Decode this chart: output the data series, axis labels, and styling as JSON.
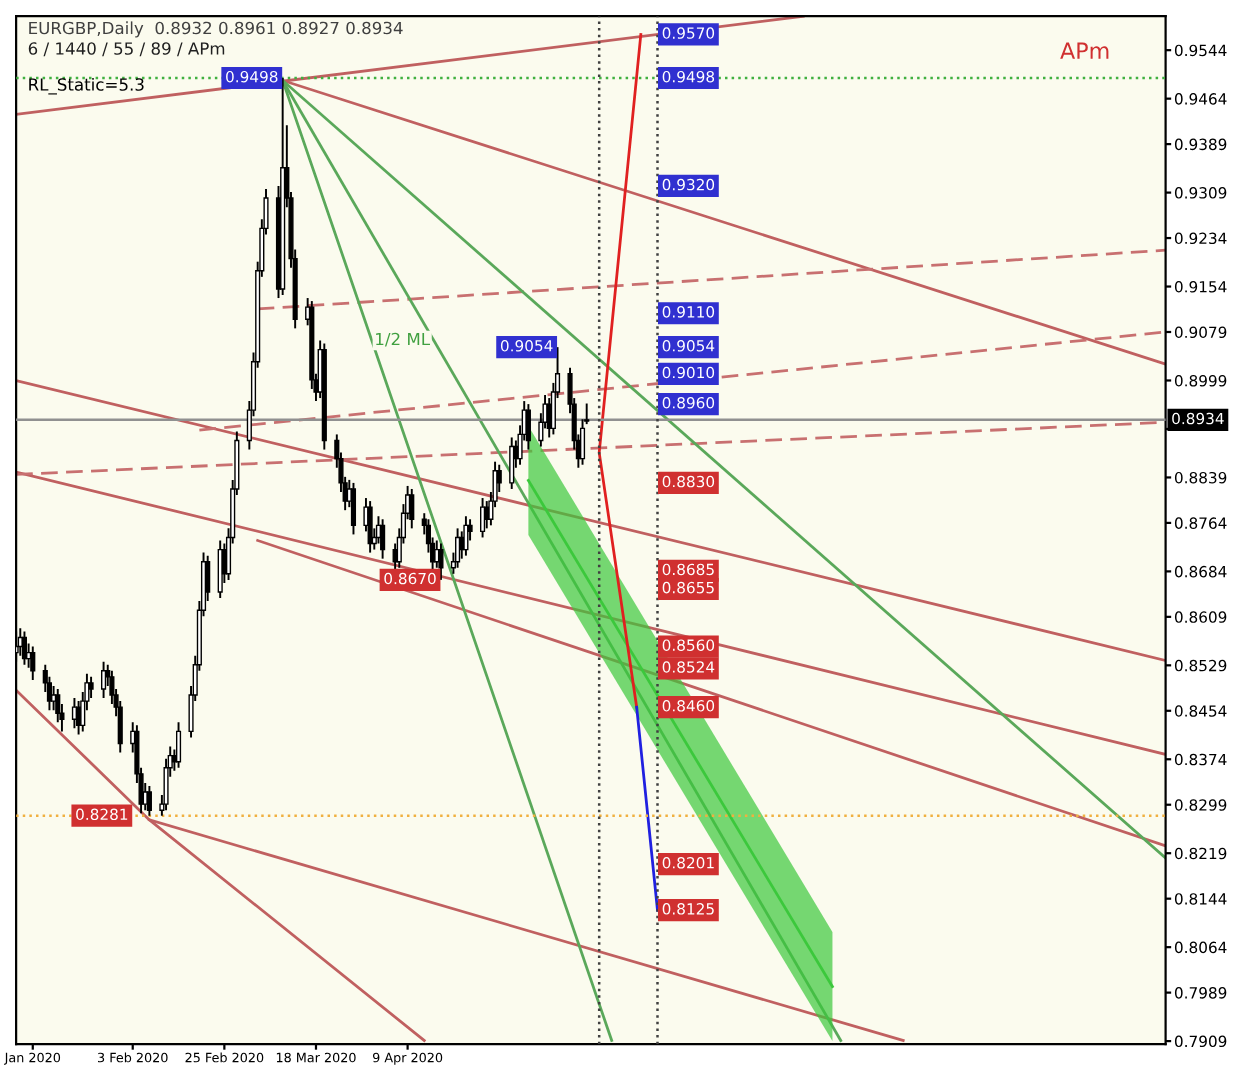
{
  "chart_data": {
    "type": "candlestick",
    "title": "EURGBP,Daily  0.8932 0.8961 0.8927 0.8934",
    "subtitle": "6 / 1440 / 55 / 89 / APm",
    "xlim": [
      "2020-01-06",
      "2020-10-08"
    ],
    "ylim": [
      0.7904,
      0.96
    ],
    "xticks": [
      {
        "value": "2020-01-10",
        "label": "Jan 2020"
      },
      {
        "value": "2020-02-03",
        "label": "3 Feb 2020"
      },
      {
        "value": "2020-02-25",
        "label": "25 Feb 2020"
      },
      {
        "value": "2020-03-18",
        "label": "18 Mar 2020"
      },
      {
        "value": "2020-04-09",
        "label": "9 Apr 2020"
      }
    ],
    "yticks": [
      0.9544,
      0.9464,
      0.9389,
      0.9309,
      0.9234,
      0.9154,
      0.9079,
      0.8999,
      {
        "value": 0.8919,
        "label": null
      },
      0.8839,
      0.8764,
      0.8684,
      0.8609,
      0.8529,
      0.8454,
      0.8374,
      0.8299,
      0.8219,
      0.8144,
      0.8064,
      0.7989,
      0.7909
    ],
    "grid": false,
    "legend": false,
    "x": [
      "2020-01-06",
      "2020-01-07",
      "2020-01-08",
      "2020-01-09",
      "2020-01-10",
      "2020-01-13",
      "2020-01-14",
      "2020-01-15",
      "2020-01-16",
      "2020-01-17",
      "2020-01-20",
      "2020-01-21",
      "2020-01-22",
      "2020-01-23",
      "2020-01-24",
      "2020-01-27",
      "2020-01-28",
      "2020-01-29",
      "2020-01-30",
      "2020-01-31",
      "2020-02-03",
      "2020-02-04",
      "2020-02-05",
      "2020-02-06",
      "2020-02-07",
      "2020-02-10",
      "2020-02-11",
      "2020-02-12",
      "2020-02-13",
      "2020-02-14",
      "2020-02-17",
      "2020-02-18",
      "2020-02-19",
      "2020-02-20",
      "2020-02-21",
      "2020-02-24",
      "2020-02-25",
      "2020-02-26",
      "2020-02-27",
      "2020-02-28",
      "2020-03-02",
      "2020-03-03",
      "2020-03-04",
      "2020-03-05",
      "2020-03-06",
      "2020-03-09",
      "2020-03-10",
      "2020-03-11",
      "2020-03-12",
      "2020-03-13",
      "2020-03-16",
      "2020-03-17",
      "2020-03-18",
      "2020-03-19",
      "2020-03-20",
      "2020-03-23",
      "2020-03-24",
      "2020-03-25",
      "2020-03-26",
      "2020-03-27",
      "2020-03-30",
      "2020-03-31",
      "2020-04-01",
      "2020-04-02",
      "2020-04-03",
      "2020-04-06",
      "2020-04-07",
      "2020-04-08",
      "2020-04-09",
      "2020-04-10",
      "2020-04-13",
      "2020-04-14",
      "2020-04-15",
      "2020-04-16",
      "2020-04-17",
      "2020-04-20",
      "2020-04-21",
      "2020-04-22",
      "2020-04-23",
      "2020-04-24",
      "2020-04-27",
      "2020-04-28",
      "2020-04-29",
      "2020-04-30",
      "2020-05-01",
      "2020-05-04",
      "2020-05-05",
      "2020-05-06",
      "2020-05-07",
      "2020-05-08",
      "2020-05-11",
      "2020-05-12",
      "2020-05-13",
      "2020-05-14",
      "2020-05-15",
      "2020-05-18",
      "2020-05-19",
      "2020-05-20",
      "2020-05-21",
      "2020-05-22"
    ],
    "ohlc": [
      [
        0.855,
        0.8585,
        0.8535,
        0.856
      ],
      [
        0.856,
        0.859,
        0.8545,
        0.8575
      ],
      [
        0.8575,
        0.8585,
        0.853,
        0.854
      ],
      [
        0.854,
        0.8565,
        0.8525,
        0.855
      ],
      [
        0.855,
        0.856,
        0.8505,
        0.852
      ],
      [
        0.852,
        0.853,
        0.8485,
        0.85
      ],
      [
        0.85,
        0.851,
        0.8455,
        0.847
      ],
      [
        0.847,
        0.8495,
        0.8455,
        0.848
      ],
      [
        0.848,
        0.849,
        0.8435,
        0.845
      ],
      [
        0.845,
        0.8465,
        0.842,
        0.844
      ],
      [
        0.844,
        0.8475,
        0.8425,
        0.846
      ],
      [
        0.846,
        0.847,
        0.8415,
        0.843
      ],
      [
        0.843,
        0.8485,
        0.842,
        0.847
      ],
      [
        0.847,
        0.8515,
        0.8455,
        0.85
      ],
      [
        0.85,
        0.851,
        0.8475,
        0.849
      ],
      [
        0.849,
        0.8535,
        0.8475,
        0.852
      ],
      [
        0.852,
        0.853,
        0.8495,
        0.851
      ],
      [
        0.851,
        0.852,
        0.8465,
        0.848
      ],
      [
        0.848,
        0.849,
        0.8445,
        0.846
      ],
      [
        0.846,
        0.847,
        0.8385,
        0.84
      ],
      [
        0.84,
        0.8435,
        0.8385,
        0.842
      ],
      [
        0.842,
        0.843,
        0.8335,
        0.835
      ],
      [
        0.835,
        0.836,
        0.8285,
        0.83
      ],
      [
        0.83,
        0.8335,
        0.829,
        0.832
      ],
      [
        0.832,
        0.833,
        0.8281,
        0.829
      ],
      [
        0.829,
        0.8315,
        0.8281,
        0.83
      ],
      [
        0.83,
        0.8375,
        0.829,
        0.836
      ],
      [
        0.836,
        0.8395,
        0.8345,
        0.838
      ],
      [
        0.838,
        0.839,
        0.8355,
        0.837
      ],
      [
        0.837,
        0.8435,
        0.836,
        0.842
      ],
      [
        0.842,
        0.8495,
        0.841,
        0.848
      ],
      [
        0.848,
        0.8545,
        0.847,
        0.853
      ],
      [
        0.853,
        0.8635,
        0.852,
        0.862
      ],
      [
        0.862,
        0.8715,
        0.861,
        0.87
      ],
      [
        0.87,
        0.871,
        0.8635,
        0.865
      ],
      [
        0.865,
        0.8735,
        0.864,
        0.872
      ],
      [
        0.872,
        0.873,
        0.8665,
        0.868
      ],
      [
        0.868,
        0.8755,
        0.867,
        0.874
      ],
      [
        0.874,
        0.8835,
        0.873,
        0.882
      ],
      [
        0.882,
        0.8915,
        0.881,
        0.89
      ],
      [
        0.89,
        0.8965,
        0.8885,
        0.895
      ],
      [
        0.895,
        0.9045,
        0.894,
        0.903
      ],
      [
        0.903,
        0.9195,
        0.902,
        0.918
      ],
      [
        0.918,
        0.9265,
        0.917,
        0.925
      ],
      [
        0.925,
        0.9315,
        0.924,
        0.93
      ],
      [
        0.93,
        0.932,
        0.9135,
        0.915
      ],
      [
        0.915,
        0.9498,
        0.914,
        0.935
      ],
      [
        0.935,
        0.942,
        0.9285,
        0.93
      ],
      [
        0.93,
        0.931,
        0.9185,
        0.92
      ],
      [
        0.92,
        0.9215,
        0.9085,
        0.91
      ],
      [
        0.91,
        0.9135,
        0.909,
        0.912
      ],
      [
        0.912,
        0.913,
        0.8985,
        0.9
      ],
      [
        0.9,
        0.901,
        0.8965,
        0.898
      ],
      [
        0.898,
        0.9065,
        0.897,
        0.905
      ],
      [
        0.905,
        0.906,
        0.8885,
        0.89
      ],
      [
        0.89,
        0.891,
        0.8855,
        0.887
      ],
      [
        0.887,
        0.888,
        0.8815,
        0.883
      ],
      [
        0.883,
        0.884,
        0.8785,
        0.88
      ],
      [
        0.88,
        0.8835,
        0.879,
        0.882
      ],
      [
        0.882,
        0.883,
        0.8745,
        0.876
      ],
      [
        0.876,
        0.8805,
        0.875,
        0.879
      ],
      [
        0.879,
        0.88,
        0.8715,
        0.873
      ],
      [
        0.873,
        0.8755,
        0.872,
        0.874
      ],
      [
        0.874,
        0.8775,
        0.873,
        0.876
      ],
      [
        0.876,
        0.877,
        0.8705,
        0.872
      ],
      [
        0.872,
        0.873,
        0.8685,
        0.87
      ],
      [
        0.87,
        0.8755,
        0.869,
        0.874
      ],
      [
        0.874,
        0.8795,
        0.873,
        0.878
      ],
      [
        0.878,
        0.8825,
        0.877,
        0.881
      ],
      [
        0.881,
        0.882,
        0.8755,
        0.877
      ],
      [
        0.877,
        0.878,
        0.8745,
        0.876
      ],
      [
        0.876,
        0.877,
        0.8715,
        0.873
      ],
      [
        0.873,
        0.874,
        0.8685,
        0.87
      ],
      [
        0.87,
        0.8735,
        0.869,
        0.872
      ],
      [
        0.872,
        0.873,
        0.867,
        0.869
      ],
      [
        0.869,
        0.8715,
        0.868,
        0.87
      ],
      [
        0.87,
        0.8755,
        0.869,
        0.874
      ],
      [
        0.874,
        0.875,
        0.8705,
        0.872
      ],
      [
        0.872,
        0.8775,
        0.871,
        0.876
      ],
      [
        0.876,
        0.877,
        0.8735,
        0.875
      ],
      [
        0.875,
        0.8805,
        0.874,
        0.879
      ],
      [
        0.879,
        0.88,
        0.8755,
        0.877
      ],
      [
        0.877,
        0.8815,
        0.876,
        0.88
      ],
      [
        0.88,
        0.8865,
        0.879,
        0.885
      ],
      [
        0.885,
        0.886,
        0.8815,
        0.883
      ],
      [
        0.883,
        0.8905,
        0.882,
        0.889
      ],
      [
        0.889,
        0.89,
        0.8855,
        0.887
      ],
      [
        0.887,
        0.8925,
        0.886,
        0.891
      ],
      [
        0.891,
        0.8965,
        0.89,
        0.895
      ],
      [
        0.895,
        0.896,
        0.8885,
        0.89
      ],
      [
        0.89,
        0.8945,
        0.889,
        0.893
      ],
      [
        0.893,
        0.8975,
        0.892,
        0.896
      ],
      [
        0.896,
        0.897,
        0.8905,
        0.892
      ],
      [
        0.892,
        0.8995,
        0.891,
        0.898
      ],
      [
        0.898,
        0.9054,
        0.897,
        0.901
      ],
      [
        0.901,
        0.902,
        0.8945,
        0.896
      ],
      [
        0.896,
        0.897,
        0.8885,
        0.89
      ],
      [
        0.89,
        0.891,
        0.8855,
        0.887
      ],
      [
        0.887,
        0.8935,
        0.886,
        0.892
      ],
      [
        0.8932,
        0.8961,
        0.8927,
        0.8934
      ]
    ],
    "series": [
      {
        "type": "line",
        "color": "#c06060",
        "x": [
          "2020-01-06",
          "2020-07-13"
        ],
        "values": [
          0.9438,
          0.96
        ]
      },
      {
        "type": "line",
        "color": "#c06060",
        "x": [
          "2020-03-10",
          "2020-10-08"
        ],
        "values": [
          0.9494,
          0.9026
        ]
      },
      {
        "type": "line",
        "color": "#c06060",
        "x": [
          "2020-01-06",
          "2020-10-08"
        ],
        "values": [
          0.8999,
          0.8537
        ]
      },
      {
        "type": "line",
        "color": "#c06060",
        "x": [
          "2020-01-06",
          "2020-10-08"
        ],
        "values": [
          0.8848,
          0.8382
        ]
      },
      {
        "type": "line",
        "color": "#c06060",
        "x": [
          "2020-03-04",
          "2020-10-08"
        ],
        "values": [
          0.8735,
          0.8231
        ]
      },
      {
        "type": "line",
        "color": "#c06060",
        "x": [
          "2020-01-06",
          "2020-02-07",
          "2020-04-13"
        ],
        "values": [
          0.8488,
          0.8274,
          0.791
        ]
      },
      {
        "type": "line",
        "color": "#c06060",
        "x": [
          "2020-02-07",
          "2020-08-06"
        ],
        "values": [
          0.8274,
          0.791
        ]
      },
      {
        "type": "line",
        "color": "#c87070",
        "line_style": "dashed",
        "x": [
          "2020-03-04",
          "2020-10-08"
        ],
        "values": [
          0.9117,
          0.9214
        ]
      },
      {
        "type": "line",
        "color": "#c87070",
        "line_style": "dashed",
        "x": [
          "2020-02-19",
          "2020-10-08"
        ],
        "values": [
          0.8917,
          0.9079
        ]
      },
      {
        "type": "line",
        "color": "#c87070",
        "line_style": "dashed",
        "x": [
          "2020-01-06",
          "2020-10-08"
        ],
        "values": [
          0.8844,
          0.893
        ]
      },
      {
        "type": "line",
        "color": "#5aa85a",
        "x": [
          "2020-03-10",
          "2020-05-28"
        ],
        "values": [
          0.9494,
          0.791
        ]
      },
      {
        "type": "line",
        "color": "#5aa85a",
        "x": [
          "2020-03-10",
          "2020-07-22"
        ],
        "values": [
          0.9494,
          0.791
        ]
      },
      {
        "type": "line",
        "color": "#5aa85a",
        "x": [
          "2020-03-10",
          "2020-10-08"
        ],
        "values": [
          0.9494,
          0.8211
        ]
      },
      {
        "type": "line",
        "color": "#3cc83c",
        "x": [
          "2020-05-08",
          "2020-07-20"
        ],
        "values": [
          0.8834,
          0.7999
        ],
        "lower": [
          0.8744,
          0.7909
        ],
        "upper": [
          0.8924,
          0.8089
        ]
      },
      {
        "type": "line",
        "color": "#e02020",
        "x": [
          "2020-06-04",
          "2020-05-25",
          "2020-06-03"
        ],
        "values": [
          0.957,
          0.888,
          0.846
        ]
      },
      {
        "type": "line",
        "color": "#2020e0",
        "x": [
          "2020-06-03",
          "2020-06-08"
        ],
        "values": [
          0.846,
          0.8125
        ]
      }
    ],
    "ref_lines": [
      {
        "axis": "y",
        "value": 0.8934,
        "label": "0.8934",
        "color": "#909090"
      },
      {
        "axis": "y",
        "value": 0.9498,
        "color": "#40b040",
        "line_style": "dotted"
      },
      {
        "axis": "y",
        "value": 0.8281,
        "color": "#f0b040",
        "line_style": "dotted"
      },
      {
        "axis": "x",
        "value": "2020-05-25",
        "color": "#404040",
        "line_style": "dotted"
      },
      {
        "axis": "x",
        "value": "2020-06-08",
        "color": "#404040",
        "line_style": "dotted"
      }
    ],
    "annotations": [
      "RL_Static=5.3",
      "APm",
      {
        "text": "1/2 ML",
        "x": "2020-04-01",
        "y": 0.9065
      },
      {
        "text": "0.9498",
        "x": "2020-03-10",
        "y": 0.9498
      },
      {
        "text": "0.9054",
        "x": "2020-05-15",
        "y": 0.9054
      },
      {
        "text": "0.8670",
        "x": "2020-04-17",
        "y": 0.867
      },
      {
        "text": "0.8281",
        "x": "2020-02-03",
        "y": 0.8281
      },
      {
        "text": "0.9570",
        "x": "2020-06-08",
        "y": 0.957
      },
      {
        "text": "0.9498",
        "x": "2020-06-08",
        "y": 0.9498
      },
      {
        "text": "0.9320",
        "x": "2020-06-08",
        "y": 0.932
      },
      {
        "text": "0.9110",
        "x": "2020-06-08",
        "y": 0.911
      },
      {
        "text": "0.9054",
        "x": "2020-06-08",
        "y": 0.9054
      },
      {
        "text": "0.9010",
        "x": "2020-06-08",
        "y": 0.901
      },
      {
        "text": "0.8960",
        "x": "2020-06-08",
        "y": 0.896
      },
      {
        "text": "0.8830",
        "x": "2020-06-08",
        "y": 0.883
      },
      {
        "text": "0.8685",
        "x": "2020-06-08",
        "y": 0.8685
      },
      {
        "text": "0.8655",
        "x": "2020-06-08",
        "y": 0.8655
      },
      {
        "text": "0.8560",
        "x": "2020-06-08",
        "y": 0.856
      },
      {
        "text": "0.8524",
        "x": "2020-06-08",
        "y": 0.8524
      },
      {
        "text": "0.8460",
        "x": "2020-06-08",
        "y": 0.846
      },
      {
        "text": "0.8201",
        "x": "2020-06-08",
        "y": 0.8201
      },
      {
        "text": "0.8125",
        "x": "2020-06-08",
        "y": 0.8125
      }
    ]
  }
}
